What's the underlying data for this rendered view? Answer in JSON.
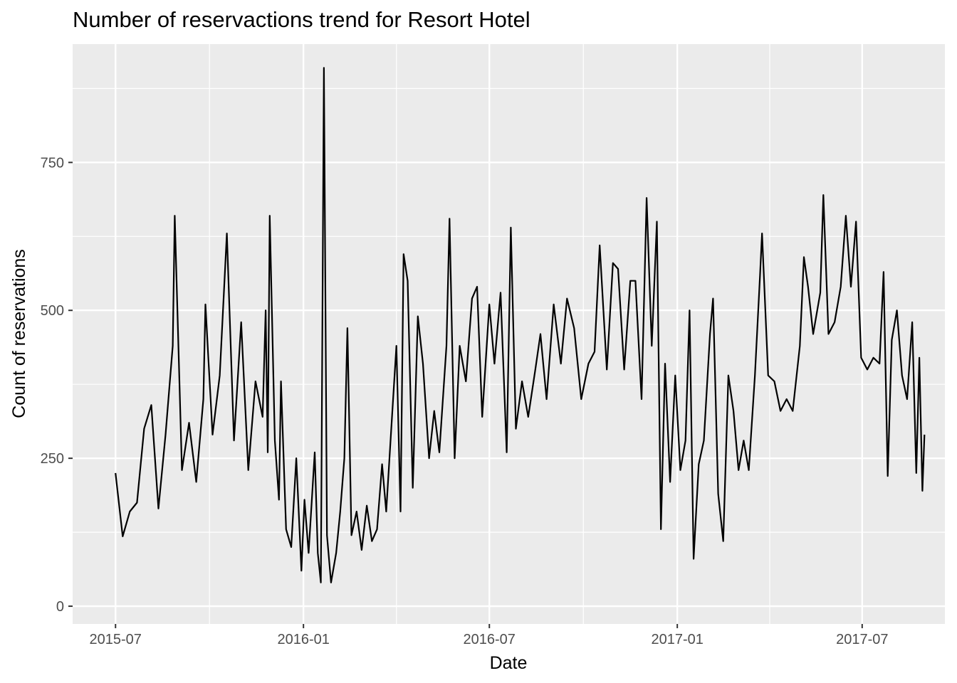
{
  "chart_data": {
    "type": "line",
    "title": "Number of reservactions trend for Resort Hotel",
    "xlabel": "Date",
    "ylabel": "Count of reservations",
    "x_start": "2015-07-01",
    "x_end": "2017-08-31",
    "x_tick_labels": [
      "2015-07",
      "2016-01",
      "2016-07",
      "2017-01",
      "2017-07"
    ],
    "x_tick_dates": [
      "2015-07-01",
      "2016-01-01",
      "2016-07-01",
      "2017-01-01",
      "2017-07-01"
    ],
    "y_ticks": [
      0,
      250,
      500,
      750
    ],
    "ylim": [
      -30,
      950
    ],
    "grid": true,
    "series": [
      {
        "color": "#000000",
        "points": [
          [
            "2015-07-01",
            225
          ],
          [
            "2015-07-08",
            118
          ],
          [
            "2015-07-15",
            160
          ],
          [
            "2015-07-22",
            175
          ],
          [
            "2015-07-29",
            300
          ],
          [
            "2015-08-05",
            340
          ],
          [
            "2015-08-12",
            165
          ],
          [
            "2015-08-19",
            290
          ],
          [
            "2015-08-26",
            440
          ],
          [
            "2015-08-28",
            660
          ],
          [
            "2015-09-04",
            230
          ],
          [
            "2015-09-11",
            310
          ],
          [
            "2015-09-18",
            210
          ],
          [
            "2015-09-25",
            350
          ],
          [
            "2015-09-27",
            510
          ],
          [
            "2015-10-04",
            290
          ],
          [
            "2015-10-11",
            390
          ],
          [
            "2015-10-18",
            630
          ],
          [
            "2015-10-25",
            280
          ],
          [
            "2015-11-01",
            480
          ],
          [
            "2015-11-08",
            230
          ],
          [
            "2015-11-15",
            380
          ],
          [
            "2015-11-22",
            320
          ],
          [
            "2015-11-25",
            500
          ],
          [
            "2015-11-27",
            260
          ],
          [
            "2015-11-29",
            660
          ],
          [
            "2015-12-04",
            280
          ],
          [
            "2015-12-08",
            180
          ],
          [
            "2015-12-10",
            380
          ],
          [
            "2015-12-15",
            130
          ],
          [
            "2015-12-20",
            100
          ],
          [
            "2015-12-25",
            250
          ],
          [
            "2015-12-30",
            60
          ],
          [
            "2016-01-02",
            180
          ],
          [
            "2016-01-06",
            90
          ],
          [
            "2016-01-12",
            260
          ],
          [
            "2016-01-15",
            90
          ],
          [
            "2016-01-18",
            40
          ],
          [
            "2016-01-21",
            910
          ],
          [
            "2016-01-24",
            120
          ],
          [
            "2016-01-28",
            40
          ],
          [
            "2016-02-02",
            90
          ],
          [
            "2016-02-06",
            160
          ],
          [
            "2016-02-10",
            250
          ],
          [
            "2016-02-13",
            470
          ],
          [
            "2016-02-17",
            120
          ],
          [
            "2016-02-22",
            160
          ],
          [
            "2016-02-27",
            95
          ],
          [
            "2016-03-03",
            170
          ],
          [
            "2016-03-08",
            110
          ],
          [
            "2016-03-13",
            130
          ],
          [
            "2016-03-18",
            240
          ],
          [
            "2016-03-22",
            160
          ],
          [
            "2016-03-27",
            300
          ],
          [
            "2016-04-01",
            440
          ],
          [
            "2016-04-05",
            160
          ],
          [
            "2016-04-08",
            595
          ],
          [
            "2016-04-12",
            550
          ],
          [
            "2016-04-17",
            200
          ],
          [
            "2016-04-22",
            490
          ],
          [
            "2016-04-27",
            410
          ],
          [
            "2016-05-03",
            250
          ],
          [
            "2016-05-08",
            330
          ],
          [
            "2016-05-13",
            260
          ],
          [
            "2016-05-20",
            440
          ],
          [
            "2016-05-23",
            655
          ],
          [
            "2016-05-28",
            250
          ],
          [
            "2016-06-02",
            440
          ],
          [
            "2016-06-08",
            380
          ],
          [
            "2016-06-14",
            520
          ],
          [
            "2016-06-19",
            540
          ],
          [
            "2016-06-24",
            320
          ],
          [
            "2016-07-01",
            510
          ],
          [
            "2016-07-06",
            410
          ],
          [
            "2016-07-12",
            530
          ],
          [
            "2016-07-18",
            260
          ],
          [
            "2016-07-22",
            640
          ],
          [
            "2016-07-27",
            300
          ],
          [
            "2016-08-02",
            380
          ],
          [
            "2016-08-08",
            320
          ],
          [
            "2016-08-15",
            400
          ],
          [
            "2016-08-20",
            460
          ],
          [
            "2016-08-26",
            350
          ],
          [
            "2016-09-02",
            510
          ],
          [
            "2016-09-09",
            410
          ],
          [
            "2016-09-15",
            520
          ],
          [
            "2016-09-22",
            470
          ],
          [
            "2016-09-29",
            350
          ],
          [
            "2016-10-06",
            410
          ],
          [
            "2016-10-12",
            430
          ],
          [
            "2016-10-17",
            610
          ],
          [
            "2016-10-24",
            400
          ],
          [
            "2016-10-30",
            580
          ],
          [
            "2016-11-04",
            570
          ],
          [
            "2016-11-10",
            400
          ],
          [
            "2016-11-16",
            550
          ],
          [
            "2016-11-21",
            550
          ],
          [
            "2016-11-27",
            350
          ],
          [
            "2016-12-02",
            690
          ],
          [
            "2016-12-07",
            440
          ],
          [
            "2016-12-12",
            650
          ],
          [
            "2016-12-16",
            130
          ],
          [
            "2016-12-20",
            410
          ],
          [
            "2016-12-25",
            210
          ],
          [
            "2016-12-30",
            390
          ],
          [
            "2017-01-04",
            230
          ],
          [
            "2017-01-09",
            280
          ],
          [
            "2017-01-13",
            500
          ],
          [
            "2017-01-17",
            80
          ],
          [
            "2017-01-22",
            240
          ],
          [
            "2017-01-27",
            280
          ],
          [
            "2017-02-02",
            460
          ],
          [
            "2017-02-05",
            520
          ],
          [
            "2017-02-10",
            190
          ],
          [
            "2017-02-15",
            110
          ],
          [
            "2017-02-20",
            390
          ],
          [
            "2017-02-25",
            330
          ],
          [
            "2017-03-02",
            230
          ],
          [
            "2017-03-07",
            280
          ],
          [
            "2017-03-12",
            230
          ],
          [
            "2017-03-18",
            390
          ],
          [
            "2017-03-23",
            560
          ],
          [
            "2017-03-25",
            630
          ],
          [
            "2017-03-31",
            390
          ],
          [
            "2017-04-06",
            380
          ],
          [
            "2017-04-12",
            330
          ],
          [
            "2017-04-18",
            350
          ],
          [
            "2017-04-24",
            330
          ],
          [
            "2017-05-01",
            440
          ],
          [
            "2017-05-05",
            590
          ],
          [
            "2017-05-09",
            540
          ],
          [
            "2017-05-14",
            460
          ],
          [
            "2017-05-21",
            530
          ],
          [
            "2017-05-24",
            695
          ],
          [
            "2017-05-29",
            460
          ],
          [
            "2017-06-04",
            480
          ],
          [
            "2017-06-10",
            540
          ],
          [
            "2017-06-15",
            660
          ],
          [
            "2017-06-20",
            540
          ],
          [
            "2017-06-25",
            650
          ],
          [
            "2017-06-30",
            420
          ],
          [
            "2017-07-06",
            400
          ],
          [
            "2017-07-12",
            420
          ],
          [
            "2017-07-18",
            410
          ],
          [
            "2017-07-22",
            565
          ],
          [
            "2017-07-26",
            220
          ],
          [
            "2017-07-30",
            450
          ],
          [
            "2017-08-04",
            500
          ],
          [
            "2017-08-09",
            390
          ],
          [
            "2017-08-14",
            350
          ],
          [
            "2017-08-19",
            480
          ],
          [
            "2017-08-23",
            225
          ],
          [
            "2017-08-26",
            420
          ],
          [
            "2017-08-29",
            195
          ],
          [
            "2017-08-31",
            290
          ]
        ]
      }
    ]
  }
}
